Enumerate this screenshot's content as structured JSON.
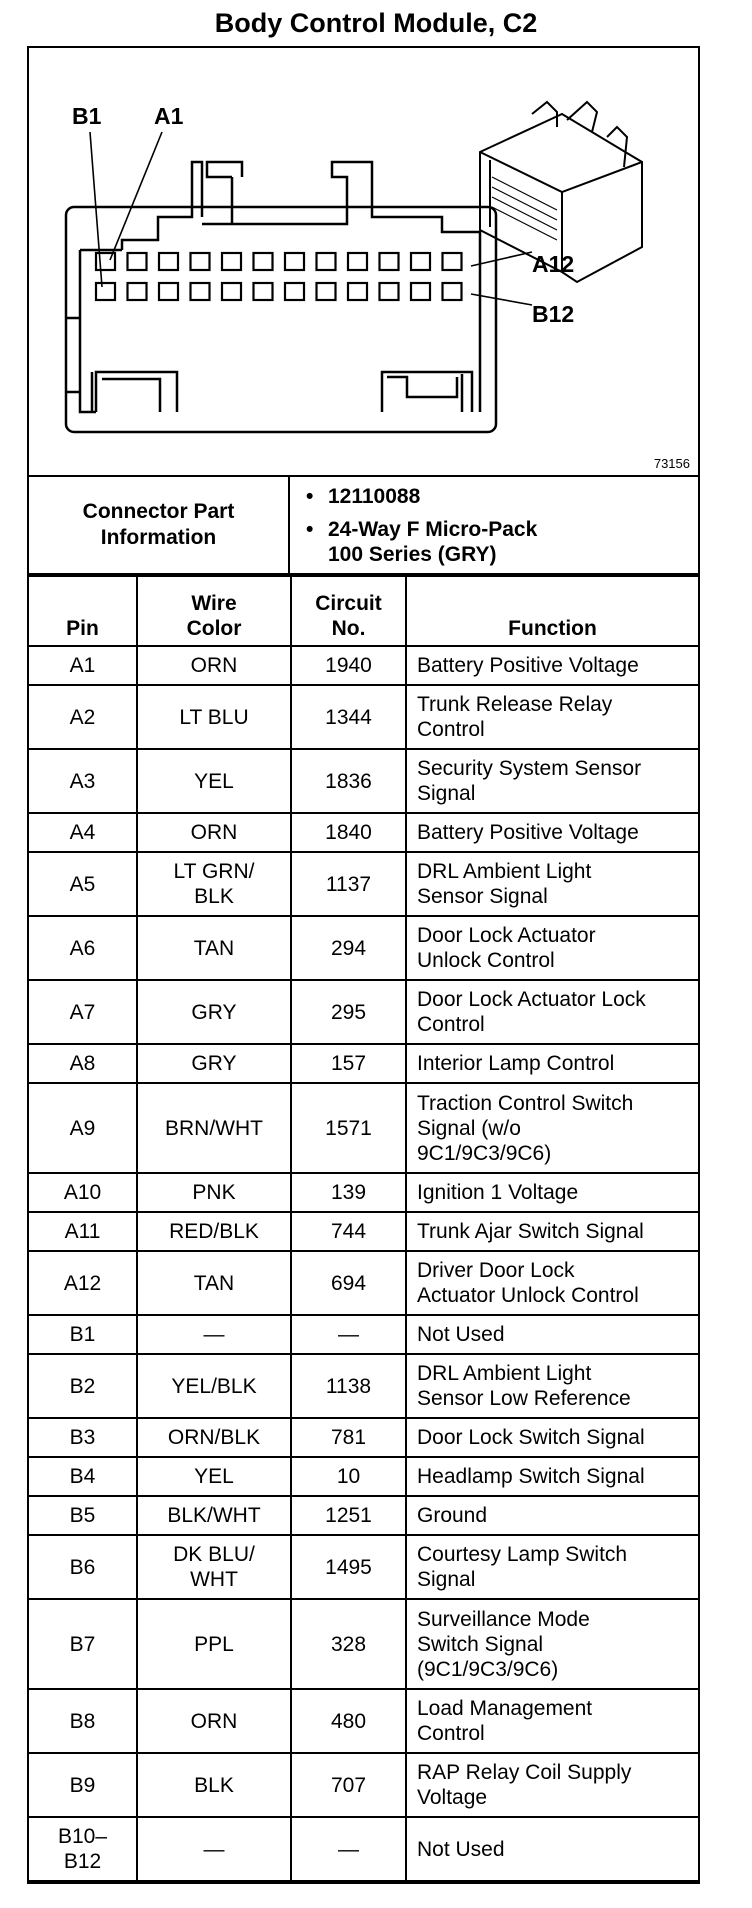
{
  "title": "Body Control Module, C2",
  "diagram": {
    "labels": {
      "b1": "B1",
      "a1": "A1",
      "a12": "A12",
      "b12": "B12"
    },
    "figure_number": "73156"
  },
  "connector_info": {
    "label_line1": "Connector Part",
    "label_line2": "Information",
    "part_number": "12110088",
    "description_line1": "24-Way F Micro-Pack",
    "description_line2": "100 Series (GRY)"
  },
  "headers": {
    "pin": "Pin",
    "wire_line1": "Wire",
    "wire_line2": "Color",
    "circuit_line1": "Circuit",
    "circuit_line2": "No.",
    "function": "Function"
  },
  "rows": [
    {
      "pin": [
        "A1"
      ],
      "wire": [
        "ORN"
      ],
      "circuit": "1940",
      "function": [
        "Battery Positive Voltage"
      ]
    },
    {
      "pin": [
        "A2"
      ],
      "wire": [
        "LT BLU"
      ],
      "circuit": "1344",
      "function": [
        "Trunk Release Relay",
        "Control"
      ]
    },
    {
      "pin": [
        "A3"
      ],
      "wire": [
        "YEL"
      ],
      "circuit": "1836",
      "function": [
        "Security System Sensor",
        "Signal"
      ]
    },
    {
      "pin": [
        "A4"
      ],
      "wire": [
        "ORN"
      ],
      "circuit": "1840",
      "function": [
        "Battery Positive Voltage"
      ]
    },
    {
      "pin": [
        "A5"
      ],
      "wire": [
        "LT GRN/",
        "BLK"
      ],
      "circuit": "1137",
      "function": [
        "DRL Ambient Light",
        "Sensor Signal"
      ]
    },
    {
      "pin": [
        "A6"
      ],
      "wire": [
        "TAN"
      ],
      "circuit": "294",
      "function": [
        "Door Lock Actuator",
        "Unlock Control"
      ]
    },
    {
      "pin": [
        "A7"
      ],
      "wire": [
        "GRY"
      ],
      "circuit": "295",
      "function": [
        "Door Lock Actuator Lock",
        "Control"
      ]
    },
    {
      "pin": [
        "A8"
      ],
      "wire": [
        "GRY"
      ],
      "circuit": "157",
      "function": [
        "Interior Lamp Control"
      ]
    },
    {
      "pin": [
        "A9"
      ],
      "wire": [
        "BRN/WHT"
      ],
      "circuit": "1571",
      "function": [
        "Traction Control Switch",
        "Signal (w/o",
        "9C1/9C3/9C6)"
      ]
    },
    {
      "pin": [
        "A10"
      ],
      "wire": [
        "PNK"
      ],
      "circuit": "139",
      "function": [
        "Ignition 1 Voltage"
      ]
    },
    {
      "pin": [
        "A11"
      ],
      "wire": [
        "RED/BLK"
      ],
      "circuit": "744",
      "function": [
        "Trunk Ajar Switch Signal"
      ]
    },
    {
      "pin": [
        "A12"
      ],
      "wire": [
        "TAN"
      ],
      "circuit": "694",
      "function": [
        "Driver Door Lock",
        "Actuator Unlock Control"
      ]
    },
    {
      "pin": [
        "B1"
      ],
      "wire": [
        "—"
      ],
      "circuit": "—",
      "function": [
        "Not Used"
      ]
    },
    {
      "pin": [
        "B2"
      ],
      "wire": [
        "YEL/BLK"
      ],
      "circuit": "1138",
      "function": [
        "DRL Ambient Light",
        "Sensor Low Reference"
      ]
    },
    {
      "pin": [
        "B3"
      ],
      "wire": [
        "ORN/BLK"
      ],
      "circuit": "781",
      "function": [
        "Door Lock Switch Signal"
      ]
    },
    {
      "pin": [
        "B4"
      ],
      "wire": [
        "YEL"
      ],
      "circuit": "10",
      "function": [
        "Headlamp Switch Signal"
      ]
    },
    {
      "pin": [
        "B5"
      ],
      "wire": [
        "BLK/WHT"
      ],
      "circuit": "1251",
      "function": [
        "Ground"
      ]
    },
    {
      "pin": [
        "B6"
      ],
      "wire": [
        "DK BLU/",
        "WHT"
      ],
      "circuit": "1495",
      "function": [
        "Courtesy Lamp Switch",
        "Signal"
      ]
    },
    {
      "pin": [
        "B7"
      ],
      "wire": [
        "PPL"
      ],
      "circuit": "328",
      "function": [
        "Surveillance Mode",
        "Switch Signal",
        "(9C1/9C3/9C6)"
      ]
    },
    {
      "pin": [
        "B8"
      ],
      "wire": [
        "ORN"
      ],
      "circuit": "480",
      "function": [
        "Load Management",
        "Control"
      ]
    },
    {
      "pin": [
        "B9"
      ],
      "wire": [
        "BLK"
      ],
      "circuit": "707",
      "function": [
        "RAP Relay Coil Supply",
        "Voltage"
      ]
    },
    {
      "pin": [
        "B10–",
        "B12"
      ],
      "wire": [
        "—"
      ],
      "circuit": "—",
      "function": [
        "Not Used"
      ]
    }
  ]
}
